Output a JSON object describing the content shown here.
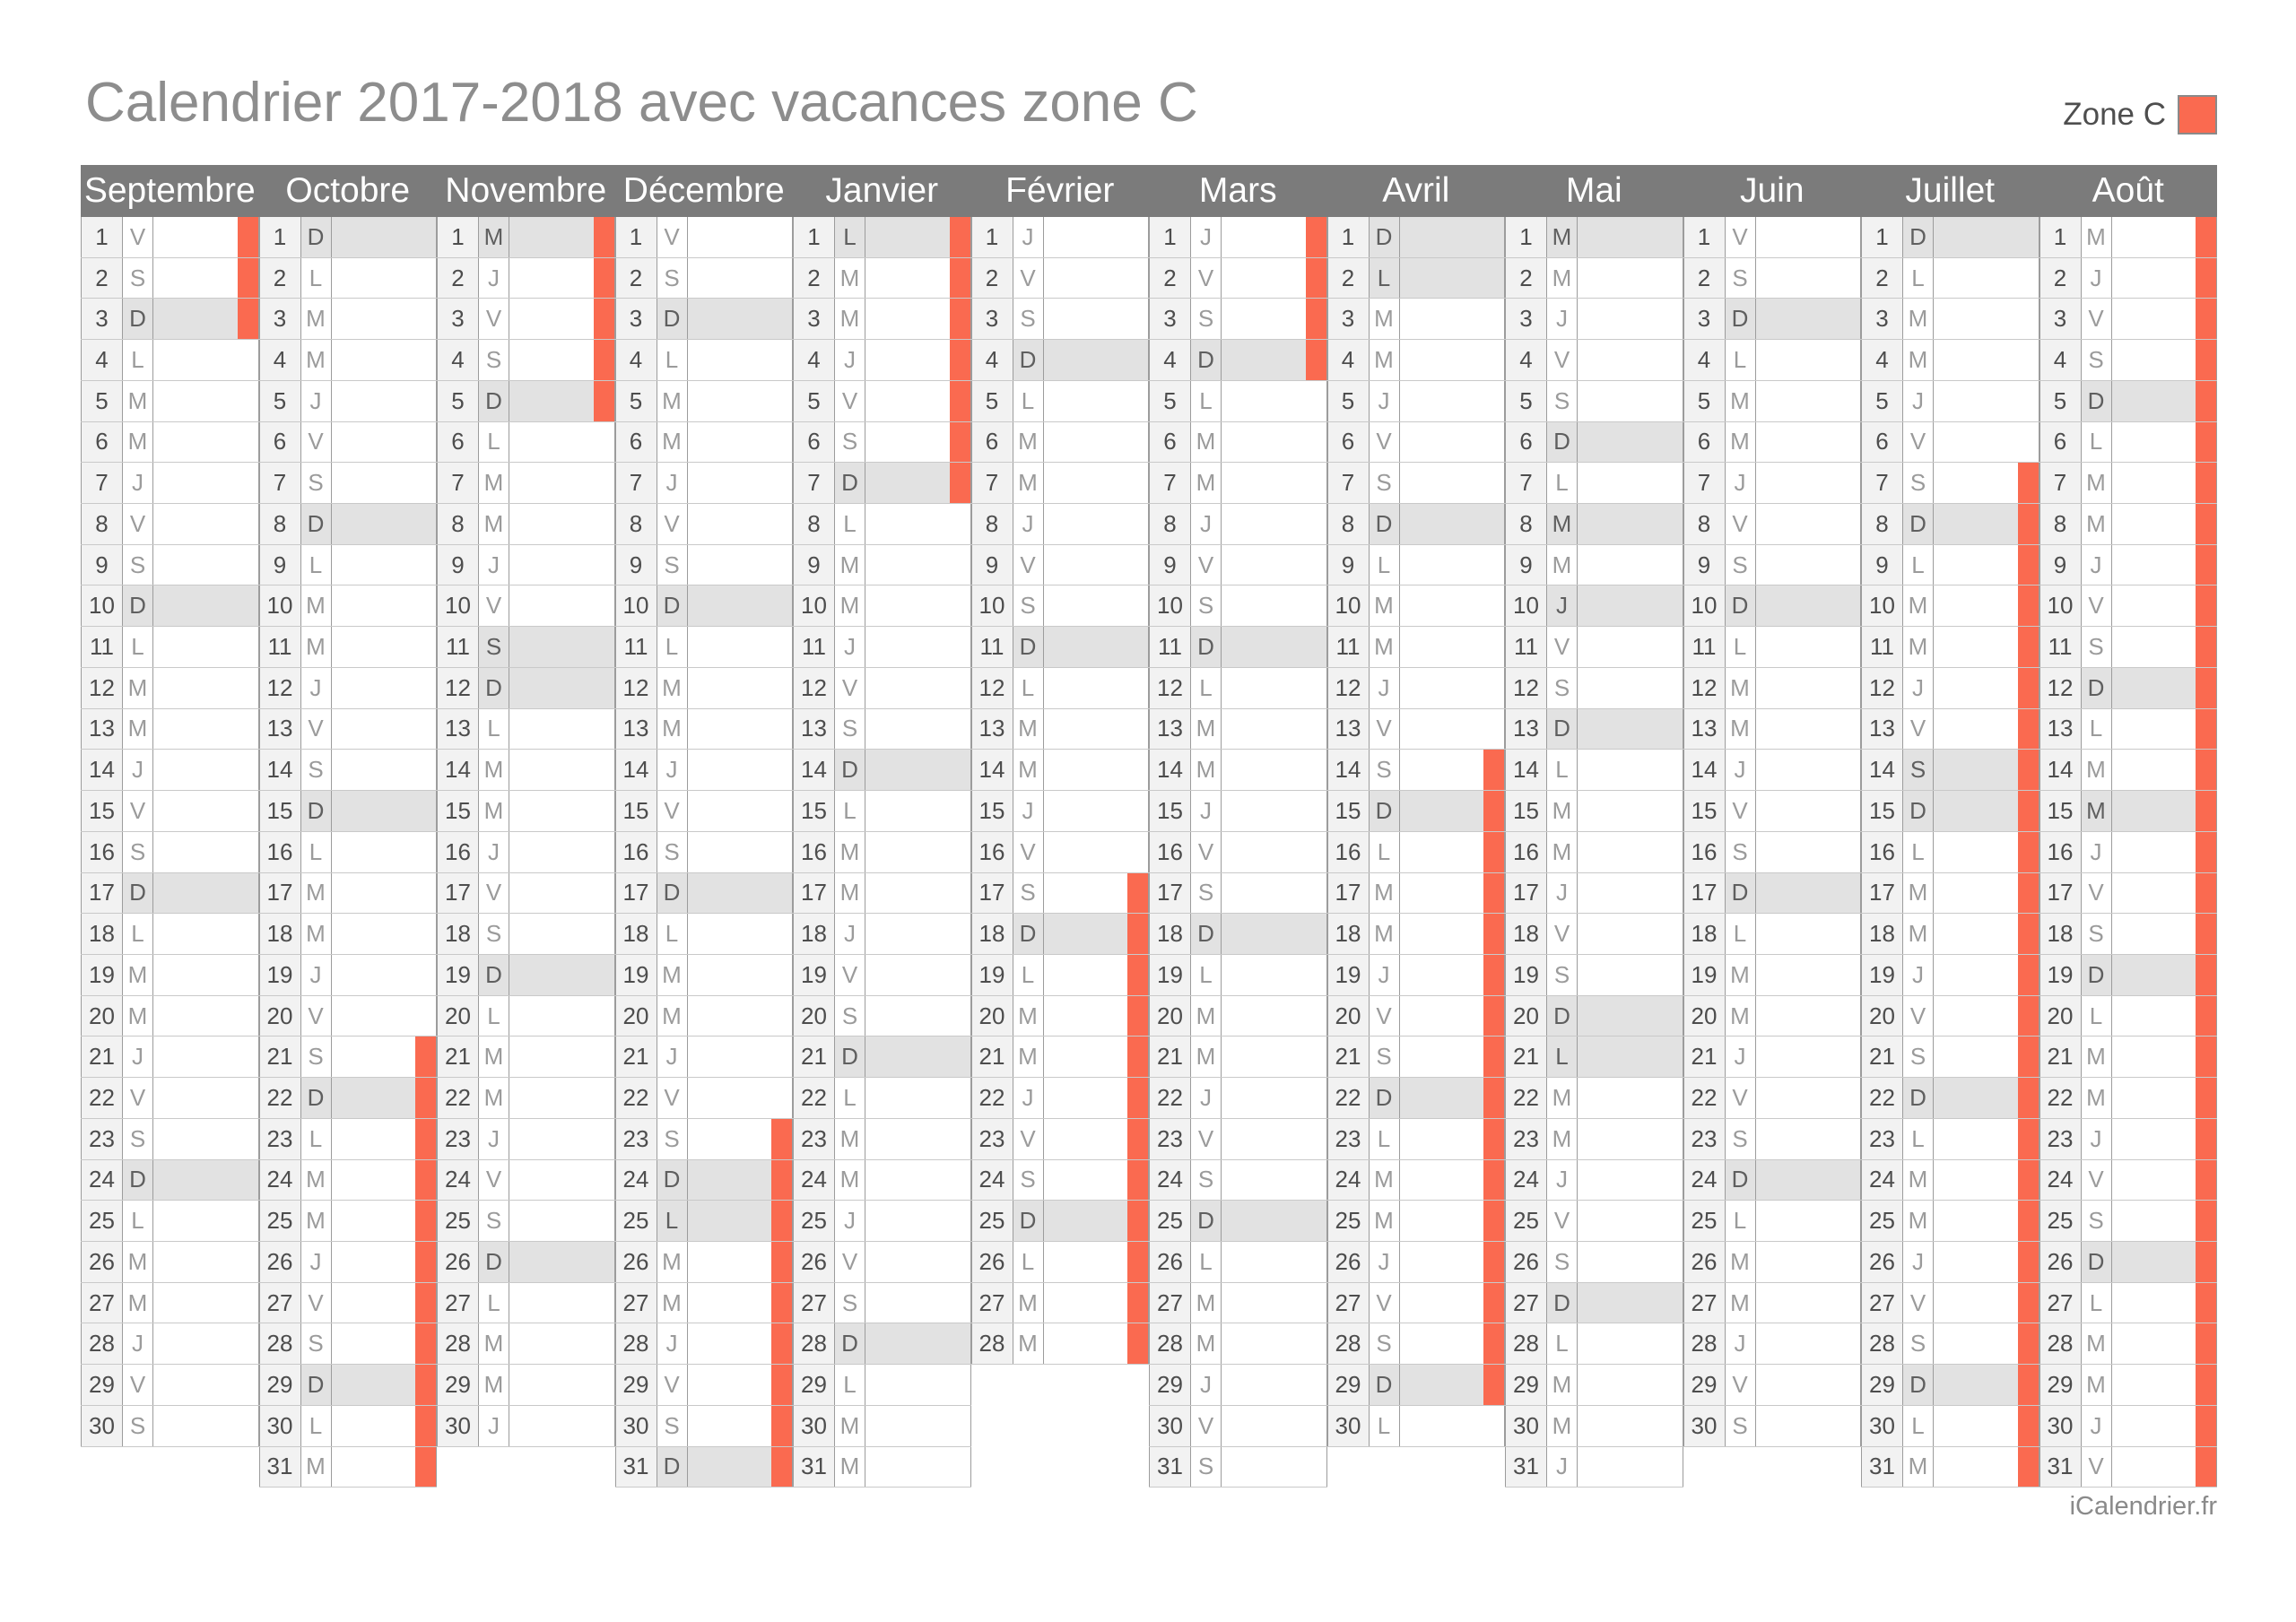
{
  "page": {
    "title": "Calendrier 2017-2018 avec vacances zone C",
    "footer": "iCalendrier.fr"
  },
  "legend": {
    "label": "Zone C",
    "color": "#fa6a50"
  },
  "style_colors": {
    "header_band": "#7b7b7b",
    "vacation_orange": "#fa6a50",
    "shaded_day": "#e2e2e2",
    "number_cell": "#f2f2f2"
  },
  "weekday_letter_legend": {
    "L": "Lundi",
    "M": "Mardi / Mercredi",
    "J": "Jeudi",
    "V": "Vendredi",
    "S": "Samedi",
    "D": "Dimanche"
  },
  "calendar": {
    "months": [
      {
        "name": "Septembre",
        "letters": [
          "V",
          "S",
          "D",
          "L",
          "M",
          "M",
          "J",
          "V",
          "S",
          "D",
          "L",
          "M",
          "M",
          "J",
          "V",
          "S",
          "D",
          "L",
          "M",
          "M",
          "J",
          "V",
          "S",
          "D",
          "L",
          "M",
          "M",
          "J",
          "V",
          "S"
        ],
        "shaded_days": [
          3,
          10,
          17,
          24
        ],
        "vacation_span": [
          1,
          3
        ]
      },
      {
        "name": "Octobre",
        "letters": [
          "D",
          "L",
          "M",
          "M",
          "J",
          "V",
          "S",
          "D",
          "L",
          "M",
          "M",
          "J",
          "V",
          "S",
          "D",
          "L",
          "M",
          "M",
          "J",
          "V",
          "S",
          "D",
          "L",
          "M",
          "M",
          "J",
          "V",
          "S",
          "D",
          "L",
          "M"
        ],
        "shaded_days": [
          1,
          8,
          15,
          22,
          29
        ],
        "vacation_span": [
          21,
          31
        ]
      },
      {
        "name": "Novembre",
        "letters": [
          "M",
          "J",
          "V",
          "S",
          "D",
          "L",
          "M",
          "M",
          "J",
          "V",
          "S",
          "D",
          "L",
          "M",
          "M",
          "J",
          "V",
          "S",
          "D",
          "L",
          "M",
          "M",
          "J",
          "V",
          "S",
          "D",
          "L",
          "M",
          "M",
          "J"
        ],
        "shaded_days": [
          1,
          5,
          11,
          12,
          19,
          26
        ],
        "vacation_span": [
          1,
          5
        ]
      },
      {
        "name": "Décembre",
        "letters": [
          "V",
          "S",
          "D",
          "L",
          "M",
          "M",
          "J",
          "V",
          "S",
          "D",
          "L",
          "M",
          "M",
          "J",
          "V",
          "S",
          "D",
          "L",
          "M",
          "M",
          "J",
          "V",
          "S",
          "D",
          "L",
          "M",
          "M",
          "J",
          "V",
          "S",
          "D"
        ],
        "shaded_days": [
          3,
          10,
          17,
          24,
          25,
          31
        ],
        "vacation_span": [
          23,
          31
        ]
      },
      {
        "name": "Janvier",
        "letters": [
          "L",
          "M",
          "M",
          "J",
          "V",
          "S",
          "D",
          "L",
          "M",
          "M",
          "J",
          "V",
          "S",
          "D",
          "L",
          "M",
          "M",
          "J",
          "V",
          "S",
          "D",
          "L",
          "M",
          "M",
          "J",
          "V",
          "S",
          "D",
          "L",
          "M",
          "M"
        ],
        "shaded_days": [
          1,
          7,
          14,
          21,
          28
        ],
        "vacation_span": [
          1,
          7
        ]
      },
      {
        "name": "Février",
        "letters": [
          "J",
          "V",
          "S",
          "D",
          "L",
          "M",
          "M",
          "J",
          "V",
          "S",
          "D",
          "L",
          "M",
          "M",
          "J",
          "V",
          "S",
          "D",
          "L",
          "M",
          "M",
          "J",
          "V",
          "S",
          "D",
          "L",
          "M",
          "M"
        ],
        "shaded_days": [
          4,
          11,
          18,
          25
        ],
        "vacation_span": [
          17,
          28
        ]
      },
      {
        "name": "Mars",
        "letters": [
          "J",
          "V",
          "S",
          "D",
          "L",
          "M",
          "M",
          "J",
          "V",
          "S",
          "D",
          "L",
          "M",
          "M",
          "J",
          "V",
          "S",
          "D",
          "L",
          "M",
          "M",
          "J",
          "V",
          "S",
          "D",
          "L",
          "M",
          "M",
          "J",
          "V",
          "S"
        ],
        "shaded_days": [
          4,
          11,
          18,
          25
        ],
        "vacation_span": [
          1,
          4
        ]
      },
      {
        "name": "Avril",
        "letters": [
          "D",
          "L",
          "M",
          "M",
          "J",
          "V",
          "S",
          "D",
          "L",
          "M",
          "M",
          "J",
          "V",
          "S",
          "D",
          "L",
          "M",
          "M",
          "J",
          "V",
          "S",
          "D",
          "L",
          "M",
          "M",
          "J",
          "V",
          "S",
          "D",
          "L"
        ],
        "shaded_days": [
          1,
          2,
          8,
          15,
          22,
          29
        ],
        "vacation_span": [
          14,
          29
        ]
      },
      {
        "name": "Mai",
        "letters": [
          "M",
          "M",
          "J",
          "V",
          "S",
          "D",
          "L",
          "M",
          "M",
          "J",
          "V",
          "S",
          "D",
          "L",
          "M",
          "M",
          "J",
          "V",
          "S",
          "D",
          "L",
          "M",
          "M",
          "J",
          "V",
          "S",
          "D",
          "L",
          "M",
          "M",
          "J"
        ],
        "shaded_days": [
          1,
          6,
          8,
          10,
          13,
          20,
          21,
          27
        ],
        "vacation_span": null
      },
      {
        "name": "Juin",
        "letters": [
          "V",
          "S",
          "D",
          "L",
          "M",
          "M",
          "J",
          "V",
          "S",
          "D",
          "L",
          "M",
          "M",
          "J",
          "V",
          "S",
          "D",
          "L",
          "M",
          "M",
          "J",
          "V",
          "S",
          "D",
          "L",
          "M",
          "M",
          "J",
          "V",
          "S"
        ],
        "shaded_days": [
          3,
          10,
          17,
          24
        ],
        "vacation_span": null
      },
      {
        "name": "Juillet",
        "letters": [
          "D",
          "L",
          "M",
          "M",
          "J",
          "V",
          "S",
          "D",
          "L",
          "M",
          "M",
          "J",
          "V",
          "S",
          "D",
          "L",
          "M",
          "M",
          "J",
          "V",
          "S",
          "D",
          "L",
          "M",
          "M",
          "J",
          "V",
          "S",
          "D",
          "L",
          "M"
        ],
        "shaded_days": [
          1,
          8,
          14,
          15,
          22,
          29
        ],
        "vacation_span": [
          7,
          31
        ]
      },
      {
        "name": "Août",
        "letters": [
          "M",
          "J",
          "V",
          "S",
          "D",
          "L",
          "M",
          "M",
          "J",
          "V",
          "S",
          "D",
          "L",
          "M",
          "M",
          "J",
          "V",
          "S",
          "D",
          "L",
          "M",
          "M",
          "J",
          "V",
          "S",
          "D",
          "L",
          "M",
          "M",
          "J",
          "V"
        ],
        "shaded_days": [
          5,
          12,
          15,
          19,
          26
        ],
        "vacation_span": [
          1,
          31
        ]
      }
    ]
  }
}
